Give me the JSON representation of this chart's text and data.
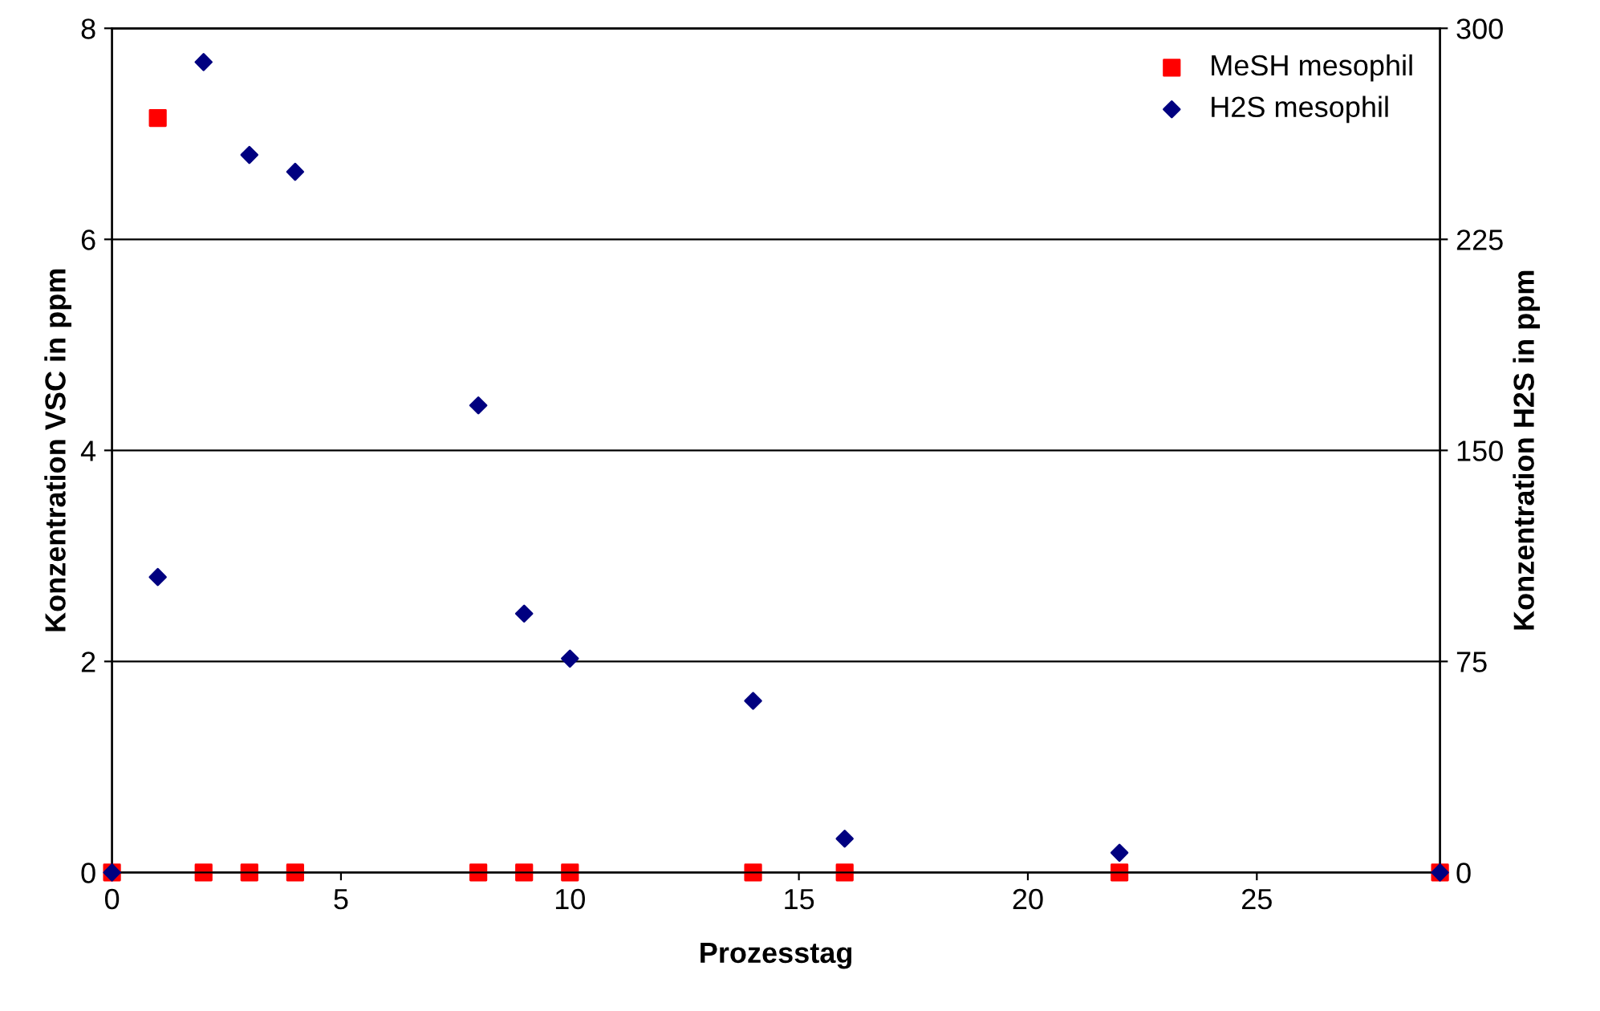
{
  "chart_data": {
    "type": "scatter",
    "xlabel": "Prozesstag",
    "ylabel": "Konzentration VSC in ppm",
    "y2label": "Konzentration H2S in ppm",
    "xlim": [
      0,
      29
    ],
    "xticks": [
      0,
      5,
      10,
      15,
      20,
      25
    ],
    "ylim": [
      0,
      8
    ],
    "yticks": [
      0,
      2,
      4,
      6,
      8
    ],
    "y2lim": [
      0,
      300
    ],
    "y2ticks": [
      0,
      75,
      150,
      225,
      300
    ],
    "grid": "y",
    "legend": "top right",
    "series": [
      {
        "name": "MeSH mesophil",
        "color": "#ff0000",
        "marker": "square",
        "x": [
          0,
          1,
          2,
          3,
          4,
          8,
          9,
          10,
          14,
          16,
          22,
          29
        ],
        "values": [
          0,
          7.15,
          0,
          0,
          0,
          0,
          0,
          0,
          0,
          0,
          0,
          0
        ]
      },
      {
        "name": "H2S mesophil",
        "color": "#000080",
        "marker": "diamond",
        "axis": "y2",
        "x": [
          0,
          1,
          2,
          3,
          4,
          8,
          9,
          10,
          14,
          16,
          22,
          29
        ],
        "values": [
          0,
          105,
          288,
          255,
          249,
          166,
          92,
          76,
          61,
          12,
          7,
          0
        ]
      }
    ]
  }
}
